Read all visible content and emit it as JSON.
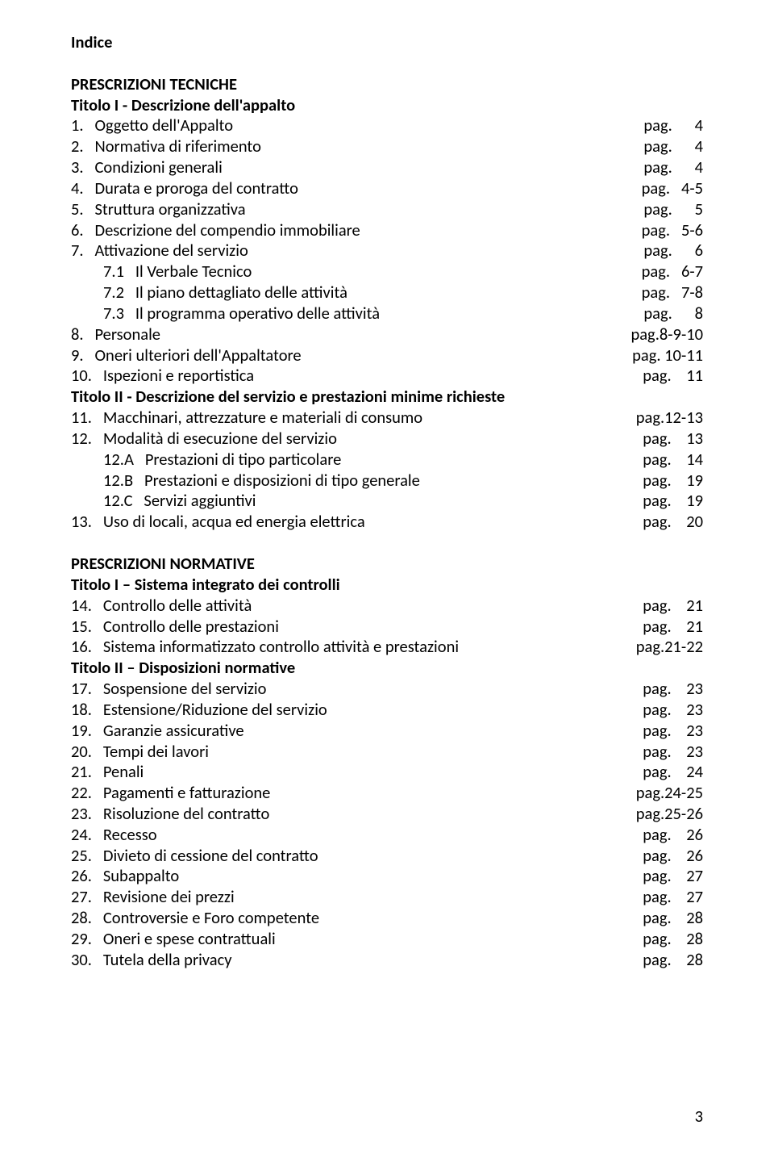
{
  "title": "Indice",
  "page_number": "3",
  "sections": [
    {
      "heading": "PRESCRIZIONI TECNICHE",
      "subheading": "Titolo I - Descrizione dell'appalto",
      "items": [
        {
          "num": "1.",
          "label": "Oggetto dell'Appalto",
          "pg": "pag.      4"
        },
        {
          "num": "2.",
          "label": "Normativa di riferimento",
          "pg": "pag.      4"
        },
        {
          "num": "3.",
          "label": "Condizioni generali",
          "pg": "pag.      4"
        },
        {
          "num": "4.",
          "label": "Durata e proroga del contratto",
          "pg": "pag.   4-5"
        },
        {
          "num": "5.",
          "label": "Struttura organizzativa",
          "pg": "pag.      5"
        },
        {
          "num": "6.",
          "label": "Descrizione del compendio immobiliare",
          "pg": "pag.   5-6"
        },
        {
          "num": "7.",
          "label": "Attivazione del servizio",
          "pg": "pag.      6"
        },
        {
          "indent": true,
          "num": "7.1",
          "label": "Il Verbale Tecnico",
          "pg": "pag.   6-7"
        },
        {
          "indent": true,
          "num": "7.2",
          "label": "Il piano dettagliato delle attività",
          "pg": "pag.   7-8"
        },
        {
          "indent": true,
          "num": "7.3",
          "label": "Il programma operativo delle attività",
          "pg": "pag.      8"
        },
        {
          "num": "8.",
          "label": "Personale",
          "pg": "pag.8-9-10"
        },
        {
          "num": "9.",
          "label": "Oneri ulteriori dell'Appaltatore",
          "pg": "pag. 10-11"
        },
        {
          "num": "10.",
          "label": "Ispezioni e reportistica",
          "pg": "pag.    11"
        }
      ]
    },
    {
      "subheading": "Titolo II - Descrizione del servizio e prestazioni minime richieste",
      "items": [
        {
          "num": "11.",
          "label": "Macchinari, attrezzature e materiali di consumo",
          "pg": "pag.12-13"
        },
        {
          "num": "12.",
          "label": "Modalità di esecuzione del servizio",
          "pg": "pag.    13"
        },
        {
          "indent": true,
          "num": "12.A",
          "label": "Prestazioni di tipo particolare",
          "pg": "pag.    14"
        },
        {
          "indent": true,
          "num": "12.B",
          "label": "Prestazioni e disposizioni di tipo generale",
          "pg": "pag.    19"
        },
        {
          "indent": true,
          "num": "12.C",
          "label": "Servizi aggiuntivi",
          "pg": "pag.    19"
        },
        {
          "num": "13.",
          "label": "Uso di locali, acqua ed energia elettrica",
          "pg": "pag.    20"
        }
      ]
    },
    {
      "gap_before": true,
      "heading": "PRESCRIZIONI NORMATIVE",
      "subheading": "Titolo I – Sistema integrato dei controlli",
      "items": [
        {
          "num": "14.",
          "label": "Controllo delle attività",
          "pg": "pag.    21"
        },
        {
          "num": "15.",
          "label": "Controllo delle prestazioni",
          "pg": "pag.    21"
        },
        {
          "num": "16.",
          "label": "Sistema informatizzato controllo attività e prestazioni",
          "pg": "pag.21-22"
        }
      ]
    },
    {
      "subheading": "Titolo II – Disposizioni normative",
      "items": [
        {
          "num": "17.",
          "label": "Sospensione del servizio",
          "pg": "pag.    23"
        },
        {
          "num": "18.",
          "label": "Estensione/Riduzione del servizio",
          "pg": "pag.    23"
        },
        {
          "num": "19.",
          "label": "Garanzie assicurative",
          "pg": "pag.    23"
        },
        {
          "num": "20.",
          "label": "Tempi dei lavori",
          "pg": "pag.    23"
        },
        {
          "num": "21.",
          "label": "Penali",
          "pg": "pag.    24"
        },
        {
          "num": "22.",
          "label": "Pagamenti e fatturazione",
          "pg": "pag.24-25"
        },
        {
          "num": "23.",
          "label": "Risoluzione del contratto",
          "pg": "pag.25-26"
        },
        {
          "num": "24.",
          "label": "Recesso",
          "pg": "pag.    26"
        },
        {
          "num": "25.",
          "label": "Divieto di cessione del contratto",
          "pg": "pag.    26"
        },
        {
          "num": "26.",
          "label": "Subappalto",
          "pg": "pag.    27"
        },
        {
          "num": "27.",
          "label": "Revisione dei prezzi",
          "pg": "pag.    27"
        },
        {
          "num": "28.",
          "label": "Controversie e Foro competente",
          "pg": "pag.    28"
        },
        {
          "num": "29.",
          "label": "Oneri e spese contrattuali",
          "pg": "pag.    28"
        },
        {
          "num": "30.",
          "label": "Tutela della privacy",
          "pg": "pag.    28"
        }
      ]
    }
  ]
}
